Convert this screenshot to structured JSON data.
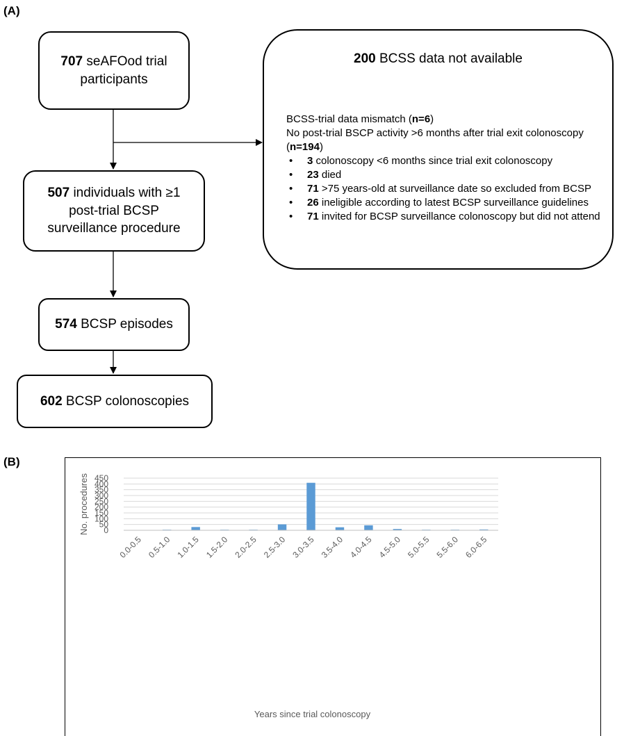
{
  "panel_a": {
    "label": "(A)",
    "box1": {
      "num": "707",
      "text": " seAFOod trial participants"
    },
    "box2": {
      "num": "507",
      "text": " individuals with ≥1 post-trial BCSP surveillance procedure"
    },
    "box3": {
      "num": "574",
      "text": " BCSP episodes"
    },
    "box4": {
      "num": "602",
      "text": " BCSP colonoscopies"
    },
    "excluded": {
      "title_num": "200",
      "title_text": " BCSS data not available",
      "mismatch_pre": "BCSS-trial data mismatch (",
      "mismatch_n": "n=6",
      "mismatch_post": ")",
      "noactivity_pre": "No post-trial BSCP activity >6 months after trial exit colonoscopy (",
      "noactivity_n": "n=194",
      "noactivity_post": ")",
      "bullets": [
        {
          "num": "3",
          "text": " colonoscopy <6 months since trial exit colonoscopy"
        },
        {
          "num": "23",
          "text": " died"
        },
        {
          "num": "71",
          "text": " >75 years-old at surveillance date so excluded from BCSP"
        },
        {
          "num": "26",
          "text": " ineligible according to latest BCSP surveillance guidelines"
        },
        {
          "num": "71",
          "text": " invited for BCSP surveillance colonoscopy but did not attend"
        }
      ]
    }
  },
  "panel_b": {
    "label": "(B)"
  },
  "chart_data": {
    "type": "bar",
    "title": "",
    "xlabel": "Years since trial colonoscopy",
    "ylabel": "No. procedures",
    "categories": [
      "0.0-0.5",
      "0.5-1.0",
      "1.0-1.5",
      "1.5-2.0",
      "2.0-2.5",
      "2.5-3.0",
      "3.0-3.5",
      "3.5-4.0",
      "4.0-4.5",
      "4.5-5.0",
      "5.0-5.5",
      "5.5-6.0",
      "6.0-6.5"
    ],
    "values": [
      0,
      5,
      28,
      5,
      5,
      51,
      410,
      26,
      43,
      11,
      5,
      5,
      7
    ],
    "ylim": [
      0,
      450
    ],
    "yticks": [
      0,
      50,
      100,
      150,
      200,
      250,
      300,
      350,
      400,
      450
    ],
    "grid": true,
    "bar_color": "#5b9bd5",
    "grid_color": "#d9d9d9",
    "text_color": "#595959"
  }
}
